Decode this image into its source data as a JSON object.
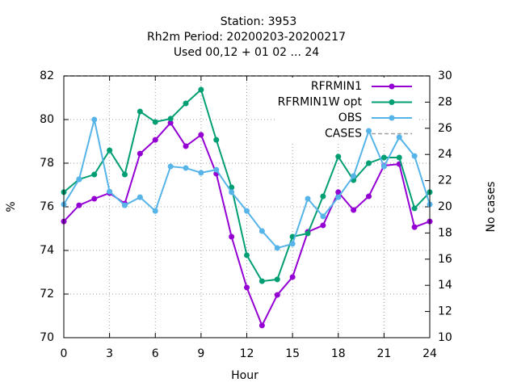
{
  "chart_data": {
    "type": "line",
    "title": [
      "Station:     3953",
      "Rh2m   Period: 20200203-20200217",
      "Used  00,12  + 01 02 ... 24"
    ],
    "xlabel": "Hour",
    "ylabel": "%",
    "y2label": "No cases",
    "x": [
      0,
      1,
      2,
      3,
      4,
      5,
      6,
      7,
      8,
      9,
      10,
      11,
      12,
      13,
      14,
      15,
      16,
      17,
      18,
      19,
      20,
      21,
      22,
      23,
      24
    ],
    "xlim": [
      0,
      24
    ],
    "xticks": [
      0,
      3,
      6,
      9,
      12,
      15,
      18,
      21,
      24
    ],
    "ylim": [
      70,
      82
    ],
    "yticks": [
      70,
      72,
      74,
      76,
      78,
      80,
      82
    ],
    "y2lim": [
      10,
      30
    ],
    "y2ticks": [
      10,
      12,
      14,
      16,
      18,
      20,
      22,
      24,
      26,
      28,
      30
    ],
    "grid": true,
    "legend": "top-right",
    "series": [
      {
        "name": "RFRMIN1",
        "color": "#9400d3",
        "values": [
          75.33,
          76.07,
          76.37,
          76.63,
          76.15,
          78.44,
          79.07,
          79.85,
          78.78,
          79.3,
          77.52,
          74.63,
          72.3,
          70.56,
          71.96,
          72.78,
          74.85,
          75.15,
          76.67,
          75.85,
          76.48,
          77.89,
          77.96,
          75.07,
          75.33
        ]
      },
      {
        "name": "RFRMIN1W opt",
        "color": "#009e73",
        "values": [
          76.67,
          77.26,
          77.48,
          78.59,
          77.48,
          80.37,
          79.89,
          80.04,
          80.74,
          81.37,
          79.07,
          76.89,
          73.78,
          72.59,
          72.67,
          74.63,
          74.78,
          76.48,
          78.3,
          77.22,
          78.0,
          78.26,
          78.26,
          75.93,
          76.67
        ]
      },
      {
        "name": "OBS",
        "color": "#56b4e9",
        "values": [
          76.11,
          77.26,
          80.0,
          76.7,
          76.07,
          76.44,
          75.81,
          77.85,
          77.78,
          77.56,
          77.7,
          76.67,
          75.81,
          74.89,
          74.11,
          74.3,
          76.37,
          75.56,
          76.44,
          77.41,
          79.48,
          77.85,
          79.19,
          78.33,
          76.11
        ]
      },
      {
        "name": "CASES",
        "color": "#a0a0a0",
        "axis": "y2",
        "dashed": true,
        "markers": false,
        "values": [
          30,
          30,
          30,
          30,
          30,
          30,
          30,
          30,
          30,
          30,
          30,
          30,
          30,
          30,
          30,
          30,
          30,
          30,
          30,
          30,
          30,
          30,
          30,
          30,
          30
        ]
      }
    ]
  }
}
